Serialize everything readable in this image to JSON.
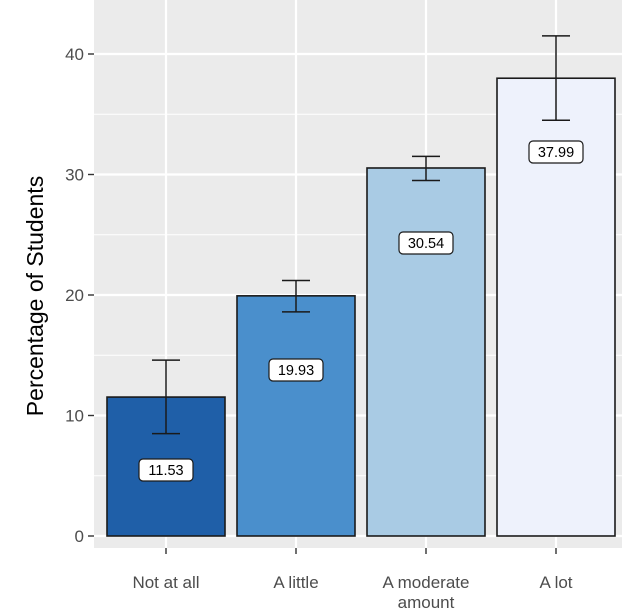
{
  "chart_data": {
    "type": "bar",
    "title": "",
    "xlabel": "",
    "ylabel": "Percentage of Students",
    "categories": [
      [
        "Not at all"
      ],
      [
        "A little"
      ],
      [
        "A moderate",
        "amount"
      ],
      [
        "A lot"
      ]
    ],
    "values": [
      11.53,
      19.93,
      30.54,
      37.99
    ],
    "value_labels": [
      "11.53",
      "19.93",
      "30.54",
      "37.99"
    ],
    "error_low": [
      8.5,
      18.6,
      29.5,
      34.5
    ],
    "error_high": [
      14.6,
      21.2,
      31.5,
      41.5
    ],
    "bar_colors": [
      "#1f5fa8",
      "#4a8fcc",
      "#a9cbe4",
      "#eef2fc"
    ],
    "ylim": [
      0,
      44
    ],
    "yticks": [
      0,
      10,
      20,
      30,
      40
    ],
    "ytick_labels": [
      "0",
      "10",
      "20",
      "30",
      "40"
    ],
    "grid": true,
    "panel_background": "#ebebeb",
    "grid_color": "#ffffff",
    "legend": "none"
  }
}
